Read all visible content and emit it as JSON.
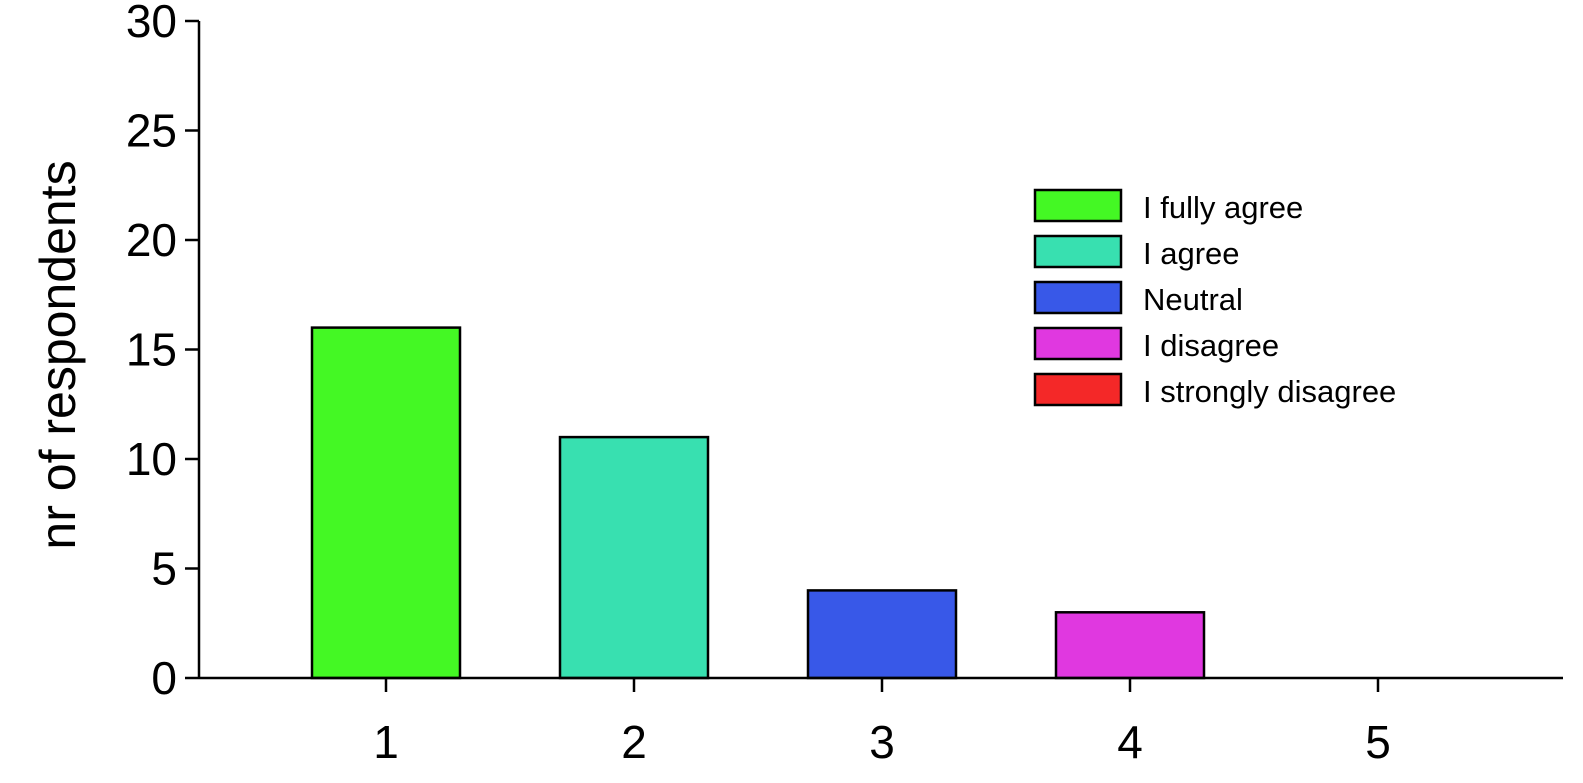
{
  "chart_data": {
    "type": "bar",
    "categories": [
      "1",
      "2",
      "3",
      "4",
      "5"
    ],
    "values": [
      16,
      11,
      4,
      3,
      0
    ],
    "colors": [
      "#44f824",
      "#38e0b0",
      "#3858e8",
      "#e038e0",
      "#f42828"
    ],
    "title": "",
    "xlabel": "",
    "ylabel": "nr of respondents",
    "ylim": [
      0,
      30
    ],
    "yticks": [
      0,
      5,
      10,
      15,
      20,
      25,
      30
    ],
    "grid": false,
    "legend_position": "top-right",
    "legend": [
      {
        "label": "I fully agree",
        "color": "#44f824"
      },
      {
        "label": "I agree",
        "color": "#38e0b0"
      },
      {
        "label": "Neutral",
        "color": "#3858e8"
      },
      {
        "label": "I disagree",
        "color": "#e038e0"
      },
      {
        "label": "I strongly disagree",
        "color": "#f42828"
      }
    ]
  }
}
